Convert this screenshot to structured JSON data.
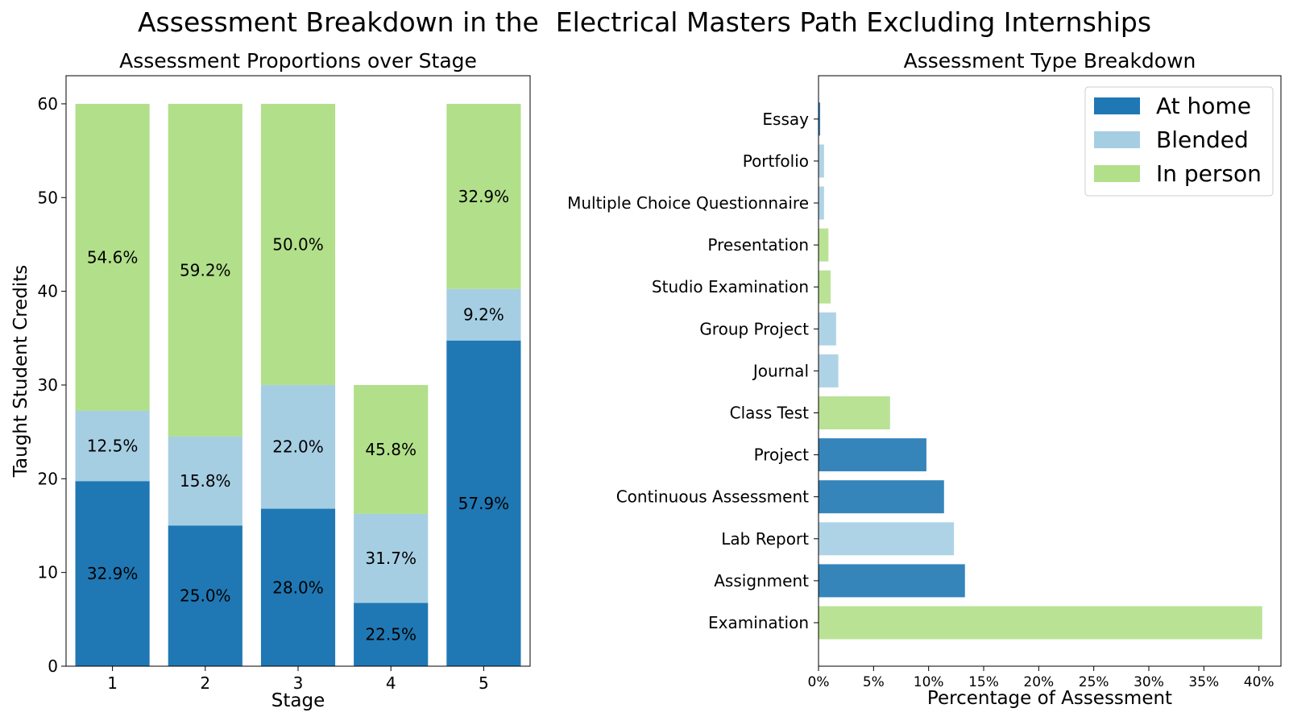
{
  "title": "Assessment Breakdown in the  Electrical Masters Path Excluding Internships",
  "colors": {
    "at_home": "#1f78b4",
    "blended": "#a6cee3",
    "in_person": "#b2df8a"
  },
  "chart_data": [
    {
      "type": "bar",
      "stacked": true,
      "title": "Assessment Proportions over Stage",
      "xlabel": "Stage",
      "ylabel": "Taught Student Credits",
      "ylim": [
        0,
        63
      ],
      "yticks": [
        0,
        10,
        20,
        30,
        40,
        50,
        60
      ],
      "categories": [
        "1",
        "2",
        "3",
        "4",
        "5"
      ],
      "series": [
        {
          "key": "at_home",
          "values": [
            19.75,
            15.0,
            16.8,
            6.75,
            34.75
          ],
          "labels": [
            "32.9%",
            "25.0%",
            "28.0%",
            "22.5%",
            "57.9%"
          ]
        },
        {
          "key": "blended",
          "values": [
            7.5,
            9.5,
            13.2,
            9.5,
            5.5
          ],
          "labels": [
            "12.5%",
            "15.8%",
            "22.0%",
            "31.7%",
            "9.2%"
          ]
        },
        {
          "key": "in_person",
          "values": [
            32.75,
            35.5,
            30.0,
            13.75,
            19.75
          ],
          "labels": [
            "54.6%",
            "59.2%",
            "50.0%",
            "45.8%",
            "32.9%"
          ]
        }
      ]
    },
    {
      "type": "bar",
      "orientation": "horizontal",
      "title": "Assessment Type Breakdown",
      "xlabel": "Percentage of Assessment",
      "xlim": [
        0,
        42
      ],
      "xticks": [
        "0%",
        "5%",
        "10%",
        "15%",
        "20%",
        "25%",
        "30%",
        "35%",
        "40%"
      ],
      "categories": [
        "Examination",
        "Assignment",
        "Lab Report",
        "Continuous Assessment",
        "Project",
        "Class Test",
        "Journal",
        "Group Project",
        "Studio Examination",
        "Presentation",
        "Multiple Choice Questionnaire",
        "Portfolio",
        "Essay"
      ],
      "values": [
        40.3,
        13.3,
        12.3,
        11.4,
        9.8,
        6.5,
        1.8,
        1.6,
        1.1,
        0.9,
        0.5,
        0.5,
        0.15
      ],
      "types": [
        "in_person",
        "at_home",
        "blended",
        "at_home",
        "at_home",
        "in_person",
        "blended",
        "blended",
        "in_person",
        "in_person",
        "blended",
        "blended",
        "at_home"
      ],
      "legend": {
        "position": "upper right",
        "labels": [
          "At home",
          "Blended",
          "In person"
        ]
      }
    }
  ]
}
